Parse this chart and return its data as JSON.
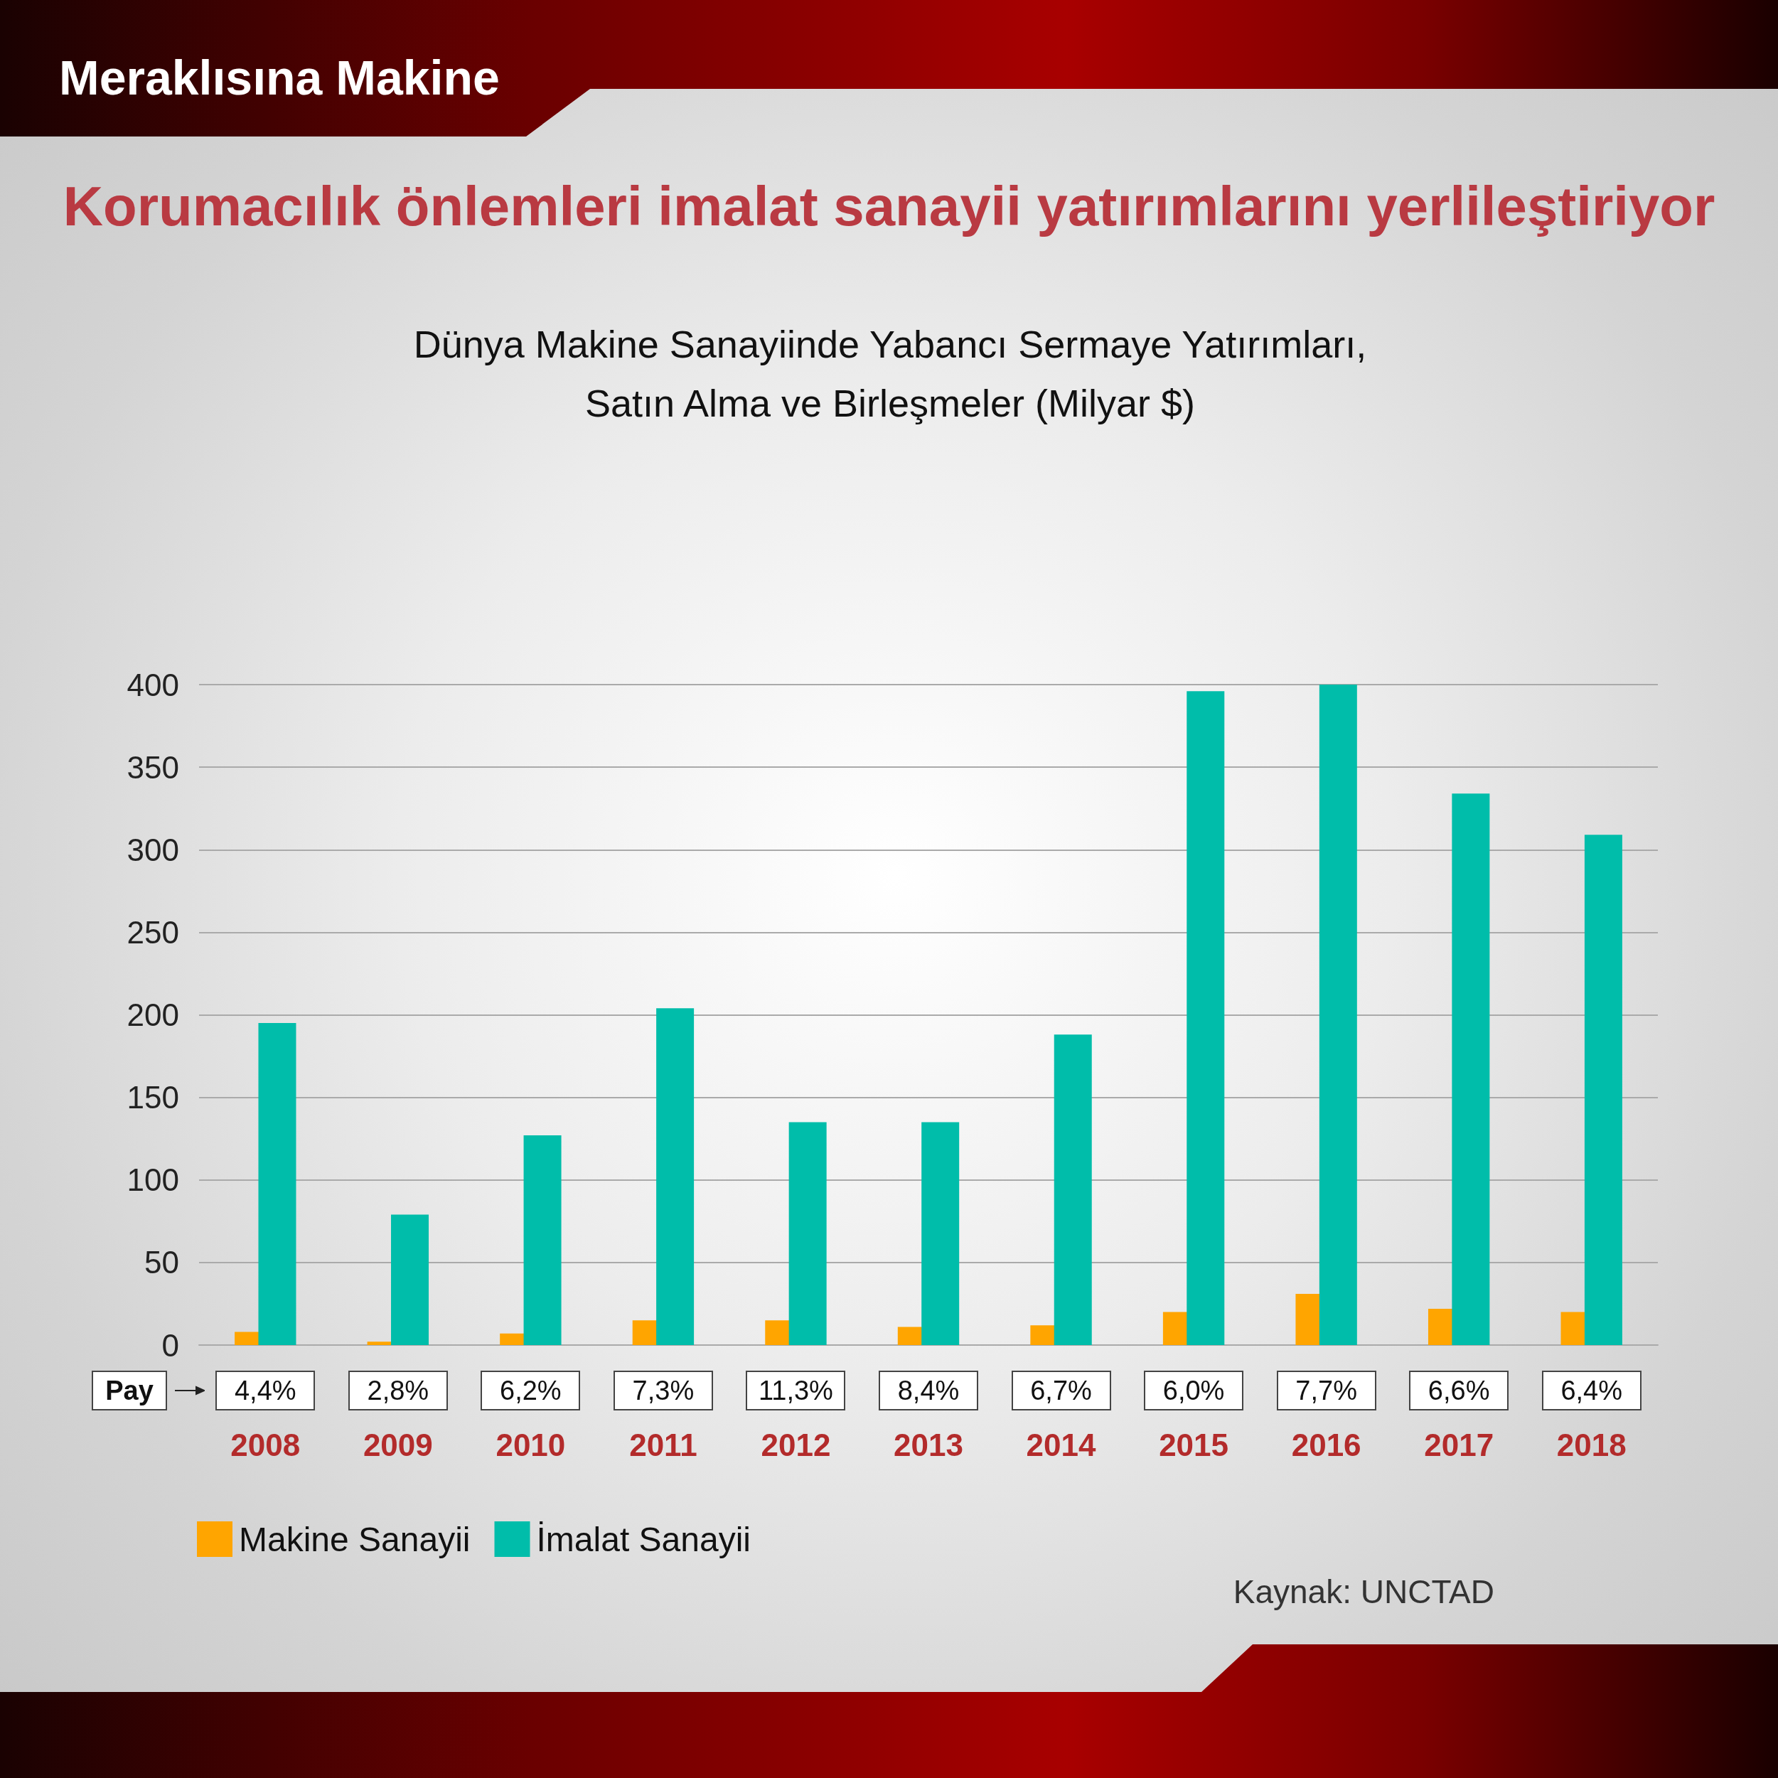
{
  "chart_data": {
    "type": "bar",
    "title": "Korumacılık önlemleri imalat sanayii yatırımlarını yerlileştiriyor",
    "subtitle": "Dünya Makine Sanayiinde Yabancı Sermaye Yatırımları,\nSatın Alma ve Birleşmeler (Milyar $)",
    "categories": [
      "2008",
      "2009",
      "2010",
      "2011",
      "2012",
      "2013",
      "2014",
      "2015",
      "2016",
      "2017",
      "2018"
    ],
    "series": [
      {
        "name": "Makine Sanayii",
        "color": "#ffa500",
        "values": [
          8,
          2,
          7,
          15,
          15,
          11,
          12,
          20,
          31,
          22,
          20
        ]
      },
      {
        "name": "İmalat Sanayii",
        "color": "#00bdaa",
        "values": [
          195,
          79,
          127,
          204,
          135,
          135,
          188,
          396,
          400,
          334,
          309
        ]
      }
    ],
    "ylim": [
      0,
      400
    ],
    "yticks": [
      0,
      50,
      100,
      150,
      200,
      250,
      300,
      350,
      400
    ],
    "grid": "y",
    "legend": "bottom left",
    "annotations": [
      "Meraklısına Makine",
      "Pay",
      "4,4%",
      "2,8%",
      "6,2%",
      "7,3%",
      "11,3%",
      "8,4%",
      "6,7%",
      "6,0%",
      "7,7%",
      "6,6%",
      "6,4%",
      "Kaynak: UNCTAD"
    ]
  }
}
